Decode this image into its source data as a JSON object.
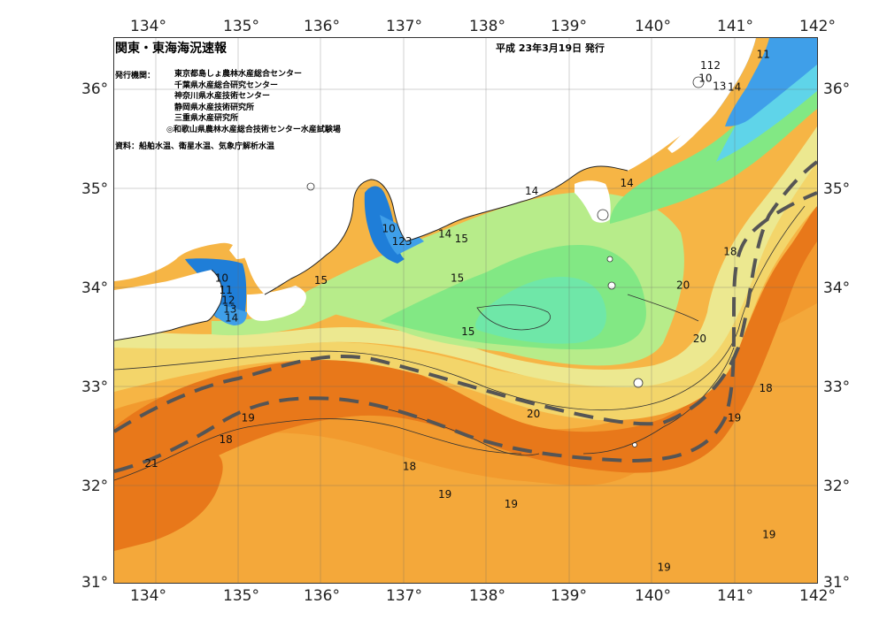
{
  "header": {
    "title": "関東・東海海況速報",
    "date_issued": "平成 23年3月19日 発行",
    "issuer_label": "発行機関：",
    "issuers": [
      "東京都島しょ農林水産総合センター",
      "千葉県水産総合研究センター",
      "神奈川県水産技術センター",
      "静岡県水産技術研究所",
      "三重県水産研究所",
      "◎和歌山県農林水産総合技術センター水産試験場"
    ],
    "source": "資料：船舶水温、衛星水温、気象庁解析水温"
  },
  "axes": {
    "longitude_ticks": [
      "134°",
      "135°",
      "136°",
      "137°",
      "138°",
      "139°",
      "140°",
      "141°",
      "142°"
    ],
    "latitude_ticks": [
      "36°",
      "35°",
      "34°",
      "33°",
      "32°",
      "31°"
    ]
  },
  "map": {
    "lon_range": [
      133.5,
      142.0
    ],
    "lat_range": [
      31.0,
      36.5
    ],
    "isotherm_labels": [
      {
        "text": "11",
        "lon": 141.35,
        "lat": 36.33
      },
      {
        "text": "112",
        "lon": 140.71,
        "lat": 36.22
      },
      {
        "text": "10",
        "lon": 140.65,
        "lat": 36.09
      },
      {
        "text": "13",
        "lon": 140.82,
        "lat": 36.01
      },
      {
        "text": "14",
        "lon": 141.0,
        "lat": 36.0
      },
      {
        "text": "14",
        "lon": 138.55,
        "lat": 34.95
      },
      {
        "text": "14",
        "lon": 139.7,
        "lat": 35.03
      },
      {
        "text": "10",
        "lon": 136.82,
        "lat": 34.57
      },
      {
        "text": "123",
        "lon": 136.98,
        "lat": 34.44
      },
      {
        "text": "14",
        "lon": 137.5,
        "lat": 34.52
      },
      {
        "text": "15",
        "lon": 137.7,
        "lat": 34.47
      },
      {
        "text": "10",
        "lon": 134.8,
        "lat": 34.07
      },
      {
        "text": "11",
        "lon": 134.85,
        "lat": 33.95
      },
      {
        "text": "12",
        "lon": 134.88,
        "lat": 33.85
      },
      {
        "text": "13",
        "lon": 134.9,
        "lat": 33.76
      },
      {
        "text": "14",
        "lon": 134.92,
        "lat": 33.67
      },
      {
        "text": "15",
        "lon": 136.0,
        "lat": 34.05
      },
      {
        "text": "15",
        "lon": 137.65,
        "lat": 34.07
      },
      {
        "text": "15",
        "lon": 137.78,
        "lat": 33.53
      },
      {
        "text": "18",
        "lon": 140.95,
        "lat": 34.34
      },
      {
        "text": "20",
        "lon": 140.38,
        "lat": 34.0
      },
      {
        "text": "20",
        "lon": 140.58,
        "lat": 33.46
      },
      {
        "text": "18",
        "lon": 141.38,
        "lat": 32.96
      },
      {
        "text": "19",
        "lon": 135.12,
        "lat": 32.66
      },
      {
        "text": "18",
        "lon": 134.85,
        "lat": 32.44
      },
      {
        "text": "21",
        "lon": 133.95,
        "lat": 32.2
      },
      {
        "text": "20",
        "lon": 138.57,
        "lat": 32.7
      },
      {
        "text": "19",
        "lon": 141.0,
        "lat": 32.66
      },
      {
        "text": "18",
        "lon": 137.07,
        "lat": 32.17
      },
      {
        "text": "19",
        "lon": 137.5,
        "lat": 31.89
      },
      {
        "text": "19",
        "lon": 138.3,
        "lat": 31.79
      },
      {
        "text": "19",
        "lon": 141.42,
        "lat": 31.48
      },
      {
        "text": "19",
        "lon": 140.15,
        "lat": 31.15
      }
    ],
    "colors": {
      "warm_deep": "#e8781a",
      "warm": "#f29a2e",
      "warm_light": "#f6b545",
      "mid_yellow": "#f3d56a",
      "pale_yellow": "#ece890",
      "pale_green": "#b7ec8a",
      "green": "#82e884",
      "aqua_green": "#6fe7a8",
      "cyan": "#5fd4e9",
      "blue": "#3f9fe9",
      "deep_blue": "#1f7ed8",
      "land": "#ffffff",
      "kuroshio_axis": "#555555"
    }
  }
}
